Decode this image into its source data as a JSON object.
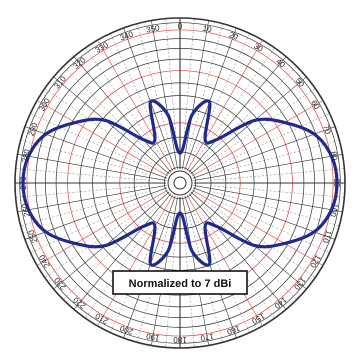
{
  "chart_data": {
    "type": "polar",
    "title": "",
    "annotation": "Normalized to 7 dBi",
    "angle_unit": "degrees",
    "angle_zero": "top",
    "angle_direction": "clockwise",
    "angle_ticks": [
      "0",
      "10",
      "20",
      "30",
      "40",
      "50",
      "60",
      "70",
      "80",
      "90",
      "100",
      "110",
      "120",
      "130",
      "140",
      "150",
      "160",
      "170",
      "180",
      "190",
      "200",
      "210",
      "220",
      "230",
      "240",
      "250",
      "260",
      "270",
      "280",
      "290",
      "300",
      "310",
      "320",
      "330",
      "340",
      "350"
    ],
    "series": [
      {
        "color": "#1f2a8c",
        "angles": [
          0,
          10,
          20,
          30,
          40,
          50,
          60,
          70,
          80,
          90,
          100,
          110,
          120,
          130,
          140,
          150,
          160,
          170,
          180,
          190,
          200,
          210,
          220,
          230,
          240,
          250,
          260,
          270,
          280,
          290,
          300,
          310,
          320,
          330,
          340,
          350
        ],
        "r": [
          0.19,
          0.44,
          0.55,
          0.32,
          0.36,
          0.62,
          0.77,
          0.91,
          0.98,
          1.0,
          0.98,
          0.91,
          0.77,
          0.62,
          0.36,
          0.32,
          0.55,
          0.44,
          0.19,
          0.44,
          0.55,
          0.32,
          0.36,
          0.62,
          0.77,
          0.91,
          0.98,
          1.0,
          0.98,
          0.91,
          0.77,
          0.62,
          0.36,
          0.32,
          0.55,
          0.44
        ]
      }
    ],
    "radial_grid": "concentric",
    "radial_accent_color": "#e04040",
    "grid": true
  }
}
